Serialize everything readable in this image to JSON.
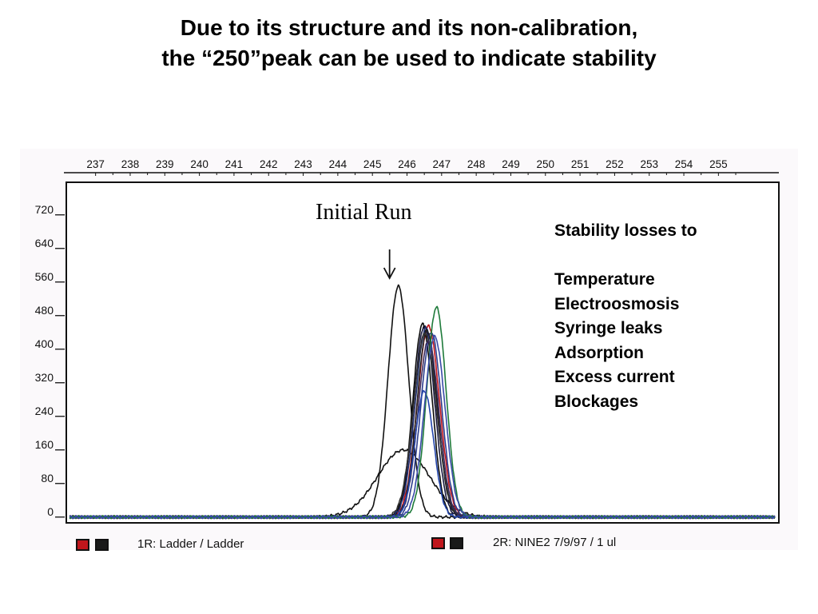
{
  "slide": {
    "title_line1": "Due to its structure and its non-calibration,",
    "title_line2": "the “250”peak can be used to indicate stability"
  },
  "annotation": "Initial Run",
  "notes": {
    "heading": "Stability losses to",
    "items": [
      "Temperature",
      "Electroosmosis",
      "Syringe leaks",
      "Adsorption",
      "Excess current",
      "Blockages"
    ]
  },
  "footer": {
    "left_label": "1R: Ladder / Ladder",
    "right_label": "2R: NINE2  7/9/97  /  1  ul",
    "swatch_colors": [
      "#c0161c",
      "#1a1a1a"
    ]
  },
  "chart_data": {
    "type": "line",
    "x_ticks": [
      237,
      238,
      239,
      240,
      241,
      242,
      243,
      244,
      245,
      246,
      247,
      248,
      249,
      250,
      251,
      252,
      253,
      254,
      255
    ],
    "y_ticks": [
      0,
      80,
      160,
      240,
      320,
      400,
      480,
      560,
      640,
      720
    ],
    "xlim": [
      236.2,
      256.7
    ],
    "ylim": [
      -10,
      790
    ],
    "grid": false,
    "baseline": 0,
    "series": [
      {
        "peak_x": 245.75,
        "peak_y": 550,
        "width": 0.3,
        "color": "#111111"
      },
      {
        "peak_x": 245.9,
        "peak_y": 160,
        "width": 0.75,
        "color": "#111111"
      },
      {
        "peak_x": 246.62,
        "peak_y": 455,
        "width": 0.32,
        "color": "#c0161c"
      },
      {
        "peak_x": 246.5,
        "peak_y": 455,
        "width": 0.3,
        "color": "#1a1a40"
      },
      {
        "peak_x": 246.45,
        "peak_y": 460,
        "width": 0.28,
        "color": "#0a0a0a"
      },
      {
        "peak_x": 246.55,
        "peak_y": 450,
        "width": 0.31,
        "color": "#1f2e6e"
      },
      {
        "peak_x": 246.7,
        "peak_y": 440,
        "width": 0.3,
        "color": "#2b3c8c"
      },
      {
        "peak_x": 246.58,
        "peak_y": 445,
        "width": 0.29,
        "color": "#202020"
      },
      {
        "peak_x": 246.52,
        "peak_y": 438,
        "width": 0.33,
        "color": "#333333"
      },
      {
        "peak_x": 246.62,
        "peak_y": 420,
        "width": 0.3,
        "color": "#3a2a5a"
      },
      {
        "peak_x": 246.5,
        "peak_y": 300,
        "width": 0.27,
        "color": "#2244aa"
      },
      {
        "peak_x": 246.85,
        "peak_y": 500,
        "width": 0.28,
        "color": "#1e7a3a"
      },
      {
        "peak_x": 246.8,
        "peak_y": 430,
        "width": 0.3,
        "color": "#3a4aa8"
      }
    ]
  }
}
